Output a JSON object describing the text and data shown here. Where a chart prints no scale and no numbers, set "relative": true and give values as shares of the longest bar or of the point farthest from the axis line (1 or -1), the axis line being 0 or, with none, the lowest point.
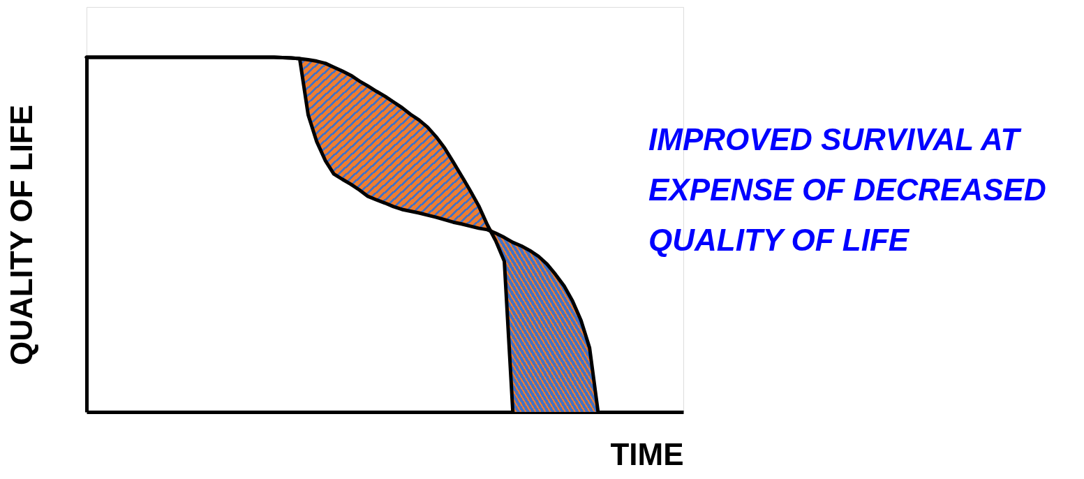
{
  "chart_data": {
    "type": "line",
    "relative": true,
    "xlabel": "TIME",
    "ylabel": "QUALITY  OF LIFE",
    "tick_labels": false,
    "grid": false,
    "colors": [
      "#ed7d31",
      "#4472c4"
    ],
    "annotations": [
      "IMPROVED SURVIVAL AT\nEXPENSE OF DECREASED\nQUALITY OF LIFE"
    ],
    "categories": [
      null,
      null,
      null,
      null,
      null,
      null,
      null,
      null,
      null,
      null,
      null,
      null,
      null,
      null,
      null,
      null,
      null,
      null,
      null,
      null,
      null,
      null,
      null,
      null,
      null,
      null,
      null,
      null,
      null,
      null,
      null,
      null,
      null,
      null,
      null,
      null,
      null,
      null,
      null,
      null,
      null,
      null,
      null,
      null,
      null,
      null,
      null,
      null,
      null,
      null,
      null,
      null,
      null,
      null,
      null,
      null,
      null,
      null,
      null,
      null,
      null,
      null,
      null,
      null,
      null,
      null,
      null,
      null,
      null,
      null,
      null
    ],
    "series": [
      {
        "color": "#000000",
        "values": [
          1,
          1,
          1,
          1,
          1,
          1,
          1,
          1,
          1,
          1,
          1,
          1,
          1,
          1,
          1,
          1,
          1,
          1,
          1,
          1,
          1,
          1,
          1,
          0.999,
          0.998,
          0.996,
          0.993,
          0.989,
          0.983,
          0.972,
          0.961,
          0.949,
          0.933,
          0.919,
          0.904,
          0.89,
          0.874,
          0.858,
          0.839,
          0.823,
          0.803,
          0.776,
          0.744,
          0.705,
          0.665,
          0.624,
          0.581,
          0.528,
          0.482,
          0.425,
          0,
          null,
          null,
          null,
          null,
          null,
          null,
          null,
          null,
          null,
          null,
          null,
          null,
          null,
          null,
          null,
          null,
          null,
          null,
          null,
          null
        ]
      },
      {
        "color": "#000000",
        "values": [
          1,
          1,
          1,
          1,
          1,
          1,
          1,
          1,
          1,
          1,
          1,
          1,
          1,
          1,
          1,
          1,
          1,
          1,
          1,
          1,
          1,
          1,
          1,
          0.999,
          0.998,
          0.996,
          0.837,
          0.762,
          0.709,
          0.671,
          0.656,
          0.642,
          0.626,
          0.608,
          0.598,
          0.589,
          0.579,
          0.571,
          0.566,
          0.561,
          0.555,
          0.549,
          0.542,
          0.535,
          0.53,
          0.524,
          0.518,
          0.514,
          0.504,
          0.492,
          0.478,
          0.468,
          0.455,
          0.439,
          0.417,
          0.388,
          0.356,
          0.313,
          0.258,
          0.181,
          0,
          null,
          null,
          null,
          null,
          null,
          null,
          null,
          null,
          null,
          null
        ],
        "lower": [
          null,
          null,
          null,
          null,
          null,
          null,
          null,
          null,
          null,
          null,
          null,
          null,
          null,
          null,
          null,
          null,
          null,
          null,
          null,
          null,
          null,
          null,
          null,
          null,
          null,
          0.996,
          0.837,
          0.762,
          0.709,
          0.671,
          0.656,
          0.642,
          0.626,
          0.608,
          0.598,
          0.589,
          0.579,
          0.571,
          0.566,
          0.561,
          0.555,
          0.549,
          0.542,
          0.535,
          0.53,
          0.524,
          0.518,
          0.514,
          0.482,
          0.425,
          0,
          0,
          0,
          0,
          0,
          0,
          0,
          0,
          0,
          0,
          0,
          null,
          null,
          null,
          null,
          null,
          null,
          null,
          null,
          null,
          null
        ],
        "upper": [
          null,
          null,
          null,
          null,
          null,
          null,
          null,
          null,
          null,
          null,
          null,
          null,
          null,
          null,
          null,
          null,
          null,
          null,
          null,
          null,
          null,
          null,
          null,
          null,
          null,
          0.996,
          0.993,
          0.989,
          0.983,
          0.972,
          0.961,
          0.949,
          0.933,
          0.919,
          0.904,
          0.89,
          0.874,
          0.858,
          0.839,
          0.823,
          0.803,
          0.776,
          0.744,
          0.705,
          0.665,
          0.624,
          0.581,
          0.528,
          0.504,
          0.492,
          0.478,
          0.468,
          0.455,
          0.439,
          0.417,
          0.388,
          0.356,
          0.313,
          0.258,
          0.181,
          0,
          null,
          null,
          null,
          null,
          null,
          null,
          null,
          null,
          null,
          null
        ]
      }
    ]
  }
}
